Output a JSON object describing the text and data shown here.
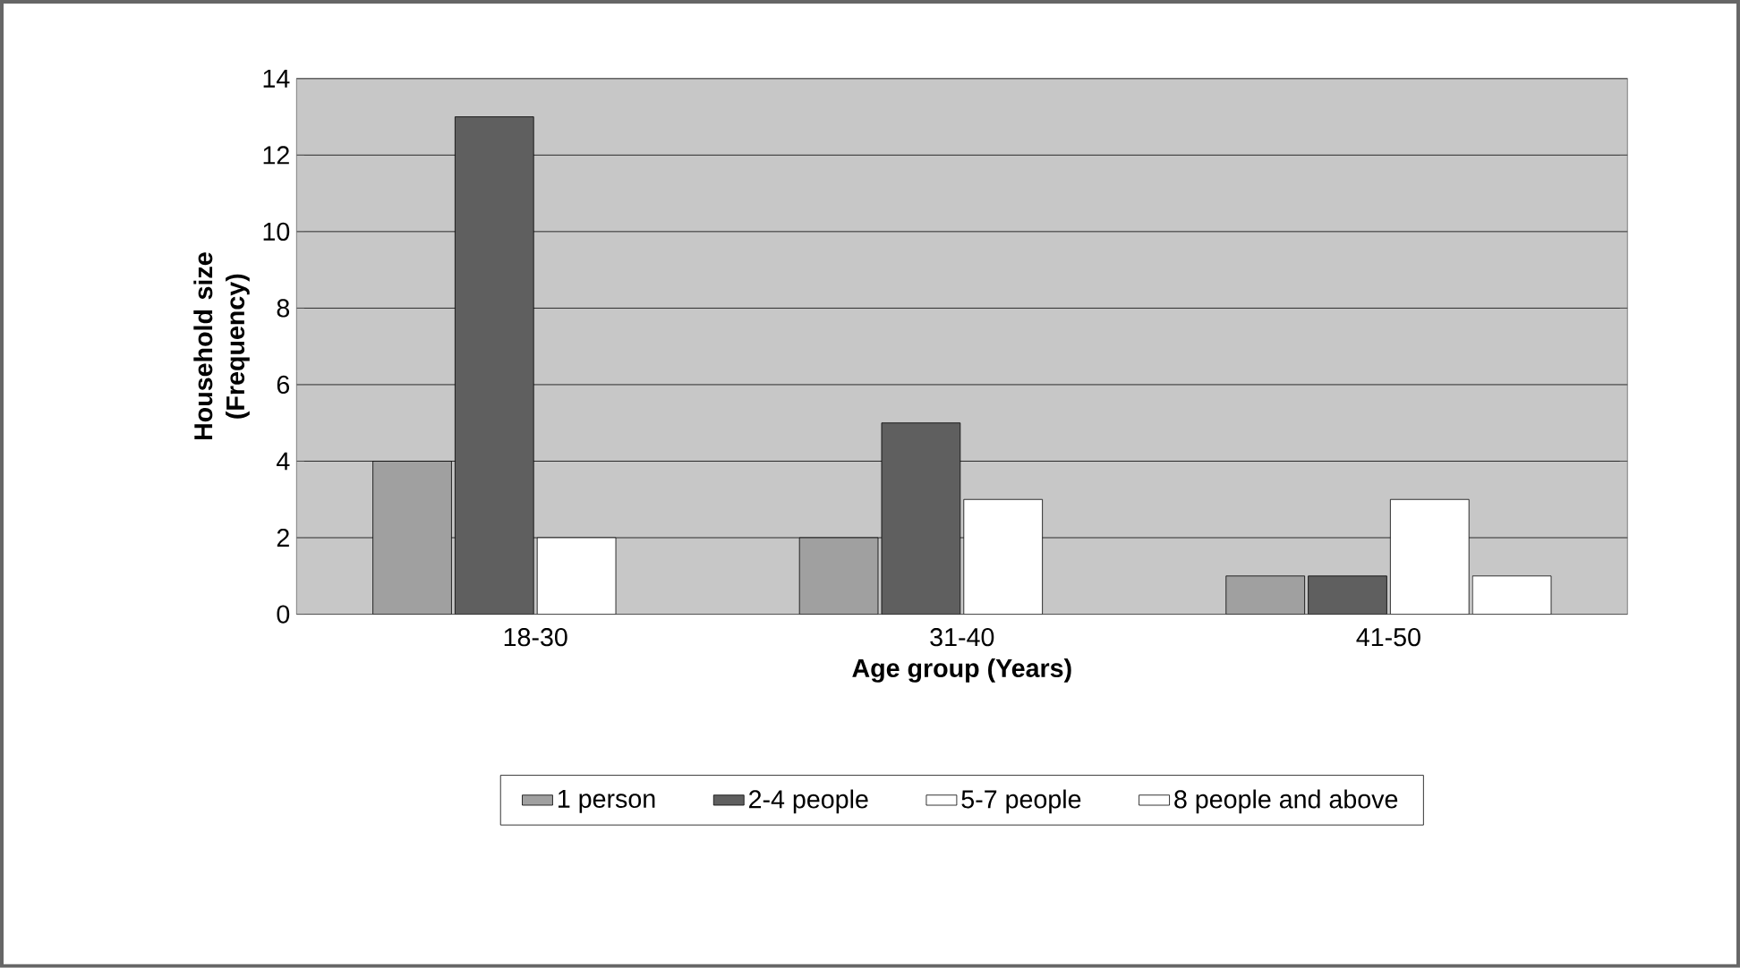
{
  "chart_data": {
    "type": "bar",
    "xlabel": "Age group (Years)",
    "ylabel": "Household size (Frequency)",
    "categories": [
      "18-30",
      "31-40",
      "41-50"
    ],
    "series": [
      {
        "name": "1 person",
        "color": "#a0a0a0",
        "values": [
          4,
          2,
          1
        ]
      },
      {
        "name": "2-4 people",
        "color": "#5f5f5f",
        "values": [
          13,
          5,
          1
        ]
      },
      {
        "name": "5-7 people",
        "color": "#ffffff",
        "values": [
          2,
          3,
          3
        ]
      },
      {
        "name": "8 people and above",
        "color": "#ffffff",
        "values": [
          null,
          null,
          1
        ]
      }
    ],
    "ylim": [
      0,
      14
    ],
    "yticks": [
      0,
      2,
      4,
      6,
      8,
      10,
      12,
      14
    ],
    "grid": "y",
    "legend": "bottom"
  }
}
